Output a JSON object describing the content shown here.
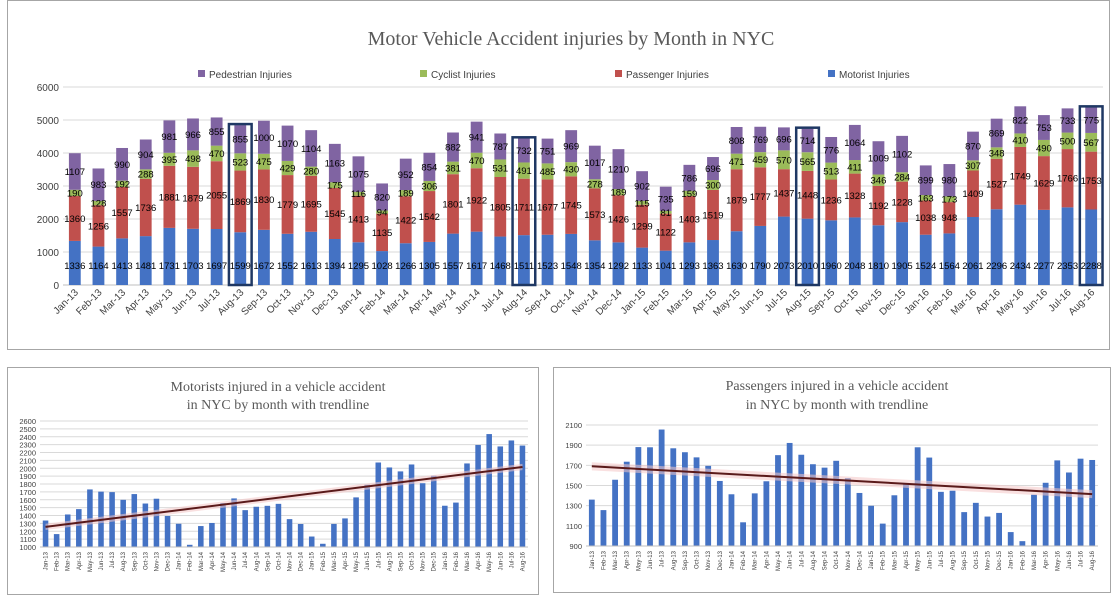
{
  "colors": {
    "motorist": "#4472c4",
    "passenger": "#c0504d",
    "cyclist": "#9bbb59",
    "pedestrian": "#8064a2",
    "highlight": "#1f3864",
    "trendline": "#5a1a1a",
    "trend_band": "#f4c7c7",
    "grid": "#d9d9d9",
    "axis_text": "#404040"
  },
  "chart_data": [
    {
      "type": "bar",
      "stacked": true,
      "title": "Motor Vehicle Accident injuries by Month in NYC",
      "legend_position": "top",
      "categories": [
        "Jan-13",
        "Feb-13",
        "Mar-13",
        "Apr-13",
        "May-13",
        "Jun-13",
        "Jul-13",
        "Aug-13",
        "Sep-13",
        "Oct-13",
        "Nov-13",
        "Dec-13",
        "Jan-14",
        "Feb-14",
        "Mar-14",
        "Apr-14",
        "May-14",
        "Jun-14",
        "Jul-14",
        "Aug-14",
        "Sep-14",
        "Oct-14",
        "Nov-14",
        "Dec-14",
        "Jan-15",
        "Feb-15",
        "Mar-15",
        "Apr-15",
        "May-15",
        "Jun-15",
        "Jul-15",
        "Aug-15",
        "Sep-15",
        "Oct-15",
        "Nov-15",
        "Dec-15",
        "Jan-16",
        "Feb-16",
        "Mar-16",
        "Apr-16",
        "May-16",
        "Jun-16",
        "Jul-16",
        "Aug-16"
      ],
      "tick_labels": [
        "Jan-13",
        "Feb-13",
        "Mar-13",
        "Apr-13",
        "May-13",
        "Jun-13",
        "Jul-13",
        "Aug-13",
        "Sep-13",
        "Oct-13",
        "Nov-13",
        "Dec-13",
        "Jan-14",
        "Feb-14",
        "Mar-14",
        "Apr-14",
        "May-14",
        "Jun-14",
        "Jul-14",
        "Aug-14",
        "Sep-14",
        "Oct-14",
        "Nov-14",
        "Dec-14",
        "Jan-15",
        "Feb-15",
        "Mar-15",
        "Apr-15",
        "May-15",
        "Jun-15",
        "Jul-15",
        "Aug-15",
        "Sep-15",
        "Oct-15",
        "Nov-15",
        "Dec-15",
        "Jan-16",
        "Feb-16",
        "Mar-16",
        "Apr-16",
        "May-16",
        "Jun-16",
        "Jul-16",
        "Aug-16"
      ],
      "series": [
        {
          "name": "Motorist Injuries",
          "values": [
            1336,
            1164,
            1413,
            1481,
            1731,
            1703,
            1697,
            1599,
            1672,
            1552,
            1613,
            1394,
            1295,
            1028,
            1266,
            1305,
            1557,
            1617,
            1468,
            1511,
            1523,
            1548,
            1354,
            1292,
            1133,
            1041,
            1293,
            1363,
            1630,
            1790,
            2073,
            2010,
            1960,
            2048,
            1810,
            1905,
            1524,
            1564,
            2061,
            2296,
            2434,
            2277,
            2353,
            2288
          ]
        },
        {
          "name": "Passenger Injuries",
          "values": [
            1360,
            1256,
            1557,
            1736,
            1881,
            1879,
            2055,
            1869,
            1830,
            1779,
            1695,
            1545,
            1413,
            1135,
            1422,
            1542,
            1801,
            1922,
            1805,
            1711,
            1677,
            1745,
            1573,
            1426,
            1299,
            1122,
            1403,
            1519,
            1879,
            1777,
            1437,
            1448,
            1236,
            1328,
            1192,
            1228,
            1038,
            948,
            1409,
            1527,
            1749,
            1629,
            1766,
            1753
          ]
        },
        {
          "name": "Cyclist Injuries",
          "values": [
            190,
            128,
            192,
            288,
            395,
            498,
            470,
            523,
            475,
            429,
            280,
            175,
            116,
            94,
            189,
            306,
            381,
            470,
            531,
            491,
            485,
            430,
            278,
            189,
            115,
            81,
            159,
            300,
            471,
            459,
            570,
            565,
            513,
            411,
            346,
            284,
            163,
            173,
            307,
            348,
            410,
            490,
            500,
            567
          ]
        },
        {
          "name": "Pedestrian Injuries",
          "values": [
            1107,
            983,
            990,
            904,
            981,
            966,
            855,
            855,
            1000,
            1070,
            1104,
            1163,
            1075,
            820,
            952,
            854,
            882,
            941,
            787,
            732,
            751,
            969,
            1017,
            1210,
            902,
            735,
            786,
            696,
            808,
            769,
            696,
            714,
            776,
            1064,
            1009,
            1102,
            899,
            980,
            870,
            869,
            822,
            753,
            733,
            775
          ]
        }
      ],
      "highlighted_categories": [
        "Aug-13",
        "Aug-14",
        "Aug-15",
        "Aug-16"
      ],
      "ylim": [
        0,
        6000
      ],
      "yticks": [
        0,
        1000,
        2000,
        3000,
        4000,
        5000,
        6000
      ],
      "grid": true
    },
    {
      "type": "bar",
      "title_lines": [
        "Motorists injured in a vehicle accident",
        "in NYC by month with trendline"
      ],
      "series_ref": "Motorist Injuries",
      "trendline": "linear",
      "ylim": [
        1000,
        2600
      ],
      "yticks": [
        1000,
        1100,
        1200,
        1300,
        1400,
        1500,
        1600,
        1700,
        1800,
        1900,
        2000,
        2100,
        2200,
        2300,
        2400,
        2500,
        2600
      ],
      "grid": true
    },
    {
      "type": "bar",
      "title_lines": [
        "Passengers injured in a vehicle accident",
        "in NYC by month with trendline"
      ],
      "series_ref": "Passenger Injuries",
      "trendline": "linear",
      "ylim": [
        900,
        2100
      ],
      "yticks": [
        900,
        1100,
        1300,
        1500,
        1700,
        1900,
        2100
      ],
      "grid": true
    }
  ]
}
